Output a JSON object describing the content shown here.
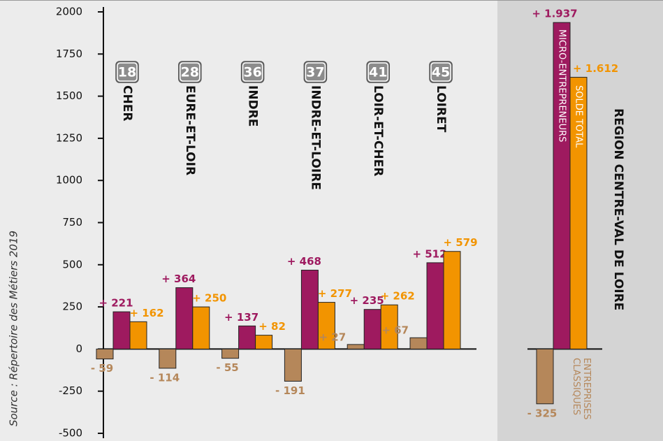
{
  "chart_data": {
    "type": "bar",
    "source": "Source : Répertoire des Métiers 2019",
    "categories": [
      "CHER",
      "EURE-ET-LOIR",
      "INDRE",
      "INDRE-ET-LOIRE",
      "LOIR-ET-CHER",
      "LOIRET",
      "REGION CENTRE-VAL DE LOIRE"
    ],
    "codes": [
      "18",
      "28",
      "36",
      "37",
      "41",
      "45",
      null
    ],
    "series": [
      {
        "name": "ENTREPRISES CLASSIQUES",
        "color": "#b5875a",
        "values": [
          -59,
          -114,
          -55,
          -191,
          27,
          67,
          -325
        ],
        "value_labels": [
          "- 59",
          "- 114",
          "- 55",
          "- 191",
          "+ 27",
          "+ 67",
          "- 325"
        ]
      },
      {
        "name": "MICRO-ENTREPRENEURS",
        "color": "#9e1a5f",
        "values": [
          221,
          364,
          137,
          468,
          235,
          512,
          1937
        ],
        "value_labels": [
          "+ 221",
          "+ 364",
          "+ 137",
          "+ 468",
          "+ 235",
          "+ 512",
          "+ 1.937"
        ]
      },
      {
        "name": "SOLDE TOTAL",
        "color": "#f29400",
        "values": [
          162,
          250,
          82,
          277,
          262,
          579,
          1612
        ],
        "value_labels": [
          "+ 162",
          "+ 250",
          "+ 82",
          "+ 277",
          "+ 262",
          "+ 579",
          "+ 1.612"
        ]
      }
    ],
    "ylim": [
      -500,
      2000
    ],
    "yticks": [
      -500,
      -250,
      0,
      250,
      500,
      750,
      1000,
      1250,
      1500,
      1750,
      2000
    ]
  }
}
